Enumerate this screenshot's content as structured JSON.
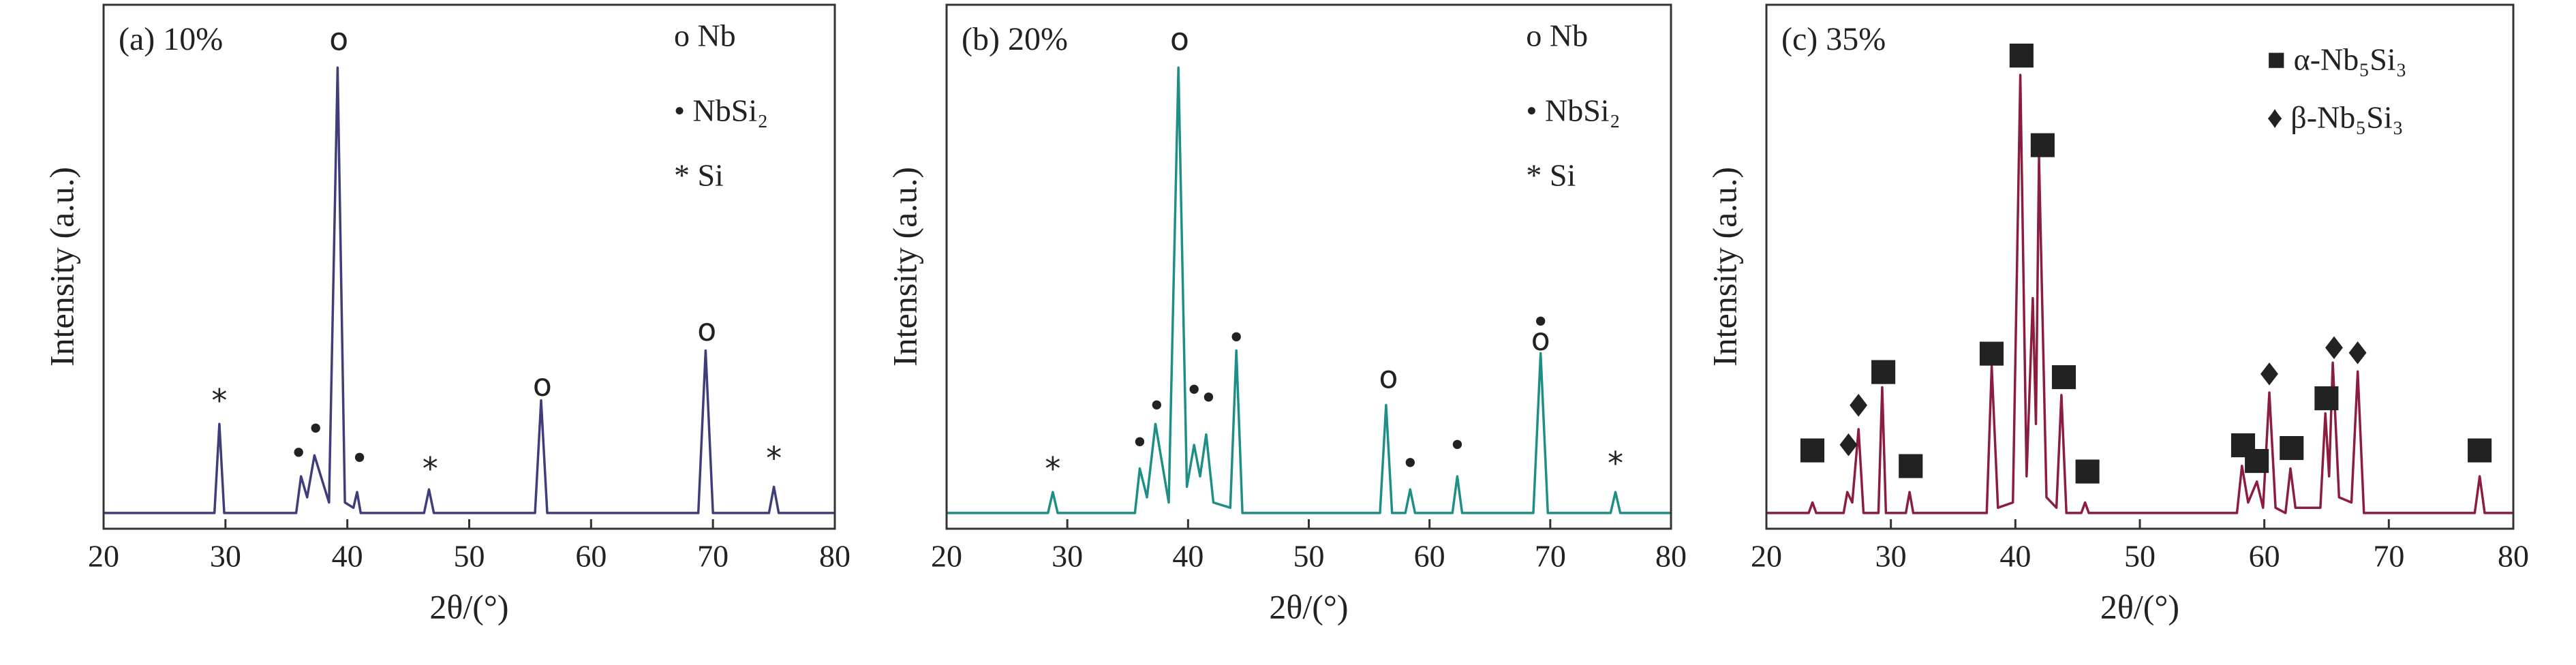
{
  "chart_data": [
    {
      "type": "line",
      "title": "(a) 10%",
      "x_label": "2θ/(°)",
      "y_label": "Intensity (a.u.)",
      "xlim": [
        20,
        80
      ],
      "xticks": [
        20,
        30,
        40,
        50,
        60,
        70,
        80
      ],
      "ylim": [
        0,
        100
      ],
      "legend": [
        "o Nb",
        "• NbSi₂",
        "* Si"
      ],
      "series": [
        {
          "color": "#3f3d7a",
          "x": [
            20,
            29.1,
            29.5,
            29.9,
            35.8,
            36.2,
            36.7,
            37.3,
            38.5,
            39.2,
            39.8,
            40.5,
            40.8,
            41.1,
            46.3,
            46.7,
            47.1,
            55.4,
            55.9,
            56.4,
            68.8,
            69.4,
            70.0,
            74.6,
            75.0,
            75.4,
            80
          ],
          "values": [
            3,
            3,
            20,
            3,
            3,
            10,
            6,
            14,
            5,
            88,
            5,
            4,
            7,
            3,
            3,
            7.5,
            3,
            3,
            24.5,
            3,
            3,
            34,
            3,
            3,
            8,
            3,
            3
          ]
        }
      ],
      "annotations": [
        {
          "text": "*",
          "x": 29.5,
          "y": 24
        },
        {
          "text": "•",
          "x": 36.0,
          "y": 14
        },
        {
          "text": "•",
          "x": 37.4,
          "y": 18.6
        },
        {
          "text": "o",
          "x": 39.3,
          "y": 93
        },
        {
          "text": "•",
          "x": 41,
          "y": 13
        },
        {
          "text": "*",
          "x": 46.8,
          "y": 11
        },
        {
          "text": "o",
          "x": 56,
          "y": 27
        },
        {
          "text": "o",
          "x": 69.5,
          "y": 37.5
        },
        {
          "text": "*",
          "x": 75,
          "y": 13
        }
      ]
    },
    {
      "type": "line",
      "title": "(b) 20%",
      "x_label": "2θ/(°)",
      "y_label": "Intensity (a.u.)",
      "xlim": [
        20,
        80
      ],
      "xticks": [
        20,
        30,
        40,
        50,
        60,
        70,
        80
      ],
      "ylim": [
        0,
        100
      ],
      "legend": [
        "o Nb",
        "• NbSi₂",
        "* Si"
      ],
      "series": [
        {
          "color": "#1f8f86",
          "x": [
            20,
            28.4,
            28.8,
            29.2,
            35.6,
            36.0,
            36.6,
            37.3,
            38.4,
            39.2,
            39.9,
            40.5,
            41.0,
            41.5,
            42.1,
            43.5,
            44.0,
            44.5,
            55.9,
            56.4,
            56.9,
            58.0,
            58.4,
            58.8,
            61.9,
            62.3,
            62.7,
            68.6,
            69.2,
            69.8,
            75.0,
            75.4,
            75.8,
            80
          ],
          "values": [
            3,
            3,
            7,
            3,
            3,
            11.5,
            6,
            20,
            5,
            88,
            8,
            16,
            10,
            18,
            5,
            4,
            34,
            3,
            3,
            23.6,
            3,
            3,
            7.5,
            3,
            3,
            10,
            3,
            3,
            33.5,
            3,
            3,
            7,
            3,
            3
          ]
        }
      ],
      "annotations": [
        {
          "text": "*",
          "x": 28.8,
          "y": 11
        },
        {
          "text": "•",
          "x": 36,
          "y": 16
        },
        {
          "text": "•",
          "x": 37.4,
          "y": 23
        },
        {
          "text": "o",
          "x": 39.3,
          "y": 93
        },
        {
          "text": "•",
          "x": 40.5,
          "y": 26
        },
        {
          "text": "•",
          "x": 41.7,
          "y": 24.5
        },
        {
          "text": "•",
          "x": 44,
          "y": 36
        },
        {
          "text": "o",
          "x": 56.6,
          "y": 28.5
        },
        {
          "text": "•",
          "x": 58.4,
          "y": 12
        },
        {
          "text": "•",
          "x": 62.3,
          "y": 15.5
        },
        {
          "text": "•",
          "x": 69.2,
          "y": 39
        },
        {
          "text": "o",
          "x": 69.2,
          "y": 35.7
        },
        {
          "text": "*",
          "x": 75.4,
          "y": 12
        }
      ]
    },
    {
      "type": "line",
      "title": "(c) 35%",
      "x_label": "2θ/(°)",
      "y_label": "Intensity (a.u.)",
      "xlim": [
        20,
        80
      ],
      "xticks": [
        20,
        30,
        40,
        50,
        60,
        70,
        80
      ],
      "ylim": [
        0,
        100
      ],
      "legend": [
        "■ α-Nb₅Si₃",
        "♦ β-Nb₅Si₃"
      ],
      "series": [
        {
          "color": "#8b1d3f",
          "x": [
            20,
            23.4,
            23.7,
            24.0,
            26.2,
            26.5,
            26.9,
            27.4,
            27.8,
            29.0,
            29.3,
            29.6,
            31.2,
            31.5,
            31.8,
            37.7,
            38.1,
            38.6,
            39.8,
            40.4,
            40.9,
            41.4,
            41.65,
            41.9,
            42.5,
            43.3,
            43.7,
            44.1,
            45.3,
            45.6,
            45.9,
            57.8,
            58.2,
            58.7,
            59.4,
            59.9,
            60.4,
            60.9,
            61.7,
            62.1,
            62.5,
            64.5,
            64.9,
            65.2,
            65.5,
            66.0,
            67.0,
            67.5,
            68.0,
            76.9,
            77.3,
            77.7,
            80
          ],
          "values": [
            3,
            3,
            5,
            3,
            3,
            7,
            5,
            19,
            3,
            3,
            27,
            3,
            3,
            7,
            3,
            3,
            31,
            4,
            5,
            86.6,
            10,
            44,
            20,
            71,
            6,
            4,
            25.5,
            3,
            3,
            5,
            3,
            3,
            12,
            5,
            9,
            4,
            26,
            4,
            3,
            11.5,
            4,
            4,
            22,
            10,
            31.7,
            6,
            5,
            30,
            3,
            3,
            10,
            3,
            3
          ]
        }
      ],
      "annotations": [
        {
          "text": "■",
          "x": 23.7,
          "y": 15
        },
        {
          "text": "♦",
          "x": 26.6,
          "y": 15.5
        },
        {
          "text": "♦",
          "x": 27.4,
          "y": 23
        },
        {
          "text": "■",
          "x": 29.4,
          "y": 30
        },
        {
          "text": "■",
          "x": 31.6,
          "y": 12
        },
        {
          "text": "■",
          "x": 38.1,
          "y": 33.5
        },
        {
          "text": "■",
          "x": 40.5,
          "y": 90.4
        },
        {
          "text": "■",
          "x": 42.2,
          "y": 73.3
        },
        {
          "text": "■",
          "x": 43.9,
          "y": 29
        },
        {
          "text": "■",
          "x": 45.8,
          "y": 11
        },
        {
          "text": "■",
          "x": 58.3,
          "y": 16
        },
        {
          "text": "■",
          "x": 59.4,
          "y": 13
        },
        {
          "text": "♦",
          "x": 60.4,
          "y": 29
        },
        {
          "text": "■",
          "x": 62.2,
          "y": 15.5
        },
        {
          "text": "■",
          "x": 65,
          "y": 25
        },
        {
          "text": "♦",
          "x": 65.6,
          "y": 34
        },
        {
          "text": "♦",
          "x": 67.5,
          "y": 33
        },
        {
          "text": "■",
          "x": 77.3,
          "y": 15
        }
      ]
    }
  ]
}
